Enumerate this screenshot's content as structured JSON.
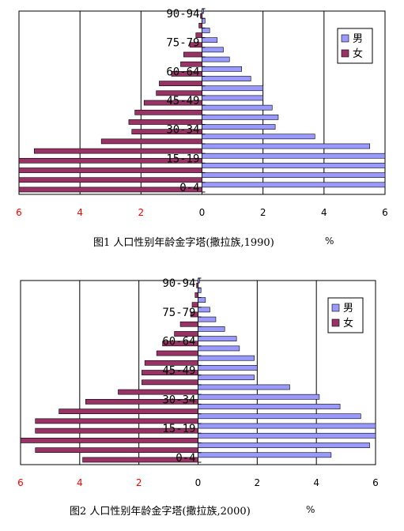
{
  "colors": {
    "male": "#9999ff",
    "female": "#993366",
    "bar_edge": "#000000",
    "frame": "#000000",
    "gridline": "#000000",
    "negative_tick": "#ff0000",
    "positive_tick": "#000000"
  },
  "chart_data": [
    {
      "type": "bar",
      "orientation": "horizontal-pyramid",
      "caption": "图1 人口性别年龄金字塔(撒拉族,1990)",
      "unit": "%",
      "xlim": [
        -6,
        6
      ],
      "x_ticks": [
        "6",
        "4",
        "2",
        "0",
        "2",
        "4",
        "6"
      ],
      "grid": true,
      "legend_position": "top-right",
      "age_labels_shown": [
        "90-94",
        "75-79",
        "60-64",
        "45-49",
        "30-34",
        "15-19",
        "0-4"
      ],
      "categories": [
        "0-4",
        "5-9",
        "10-14",
        "15-19",
        "20-24",
        "25-29",
        "30-34",
        "35-39",
        "40-44",
        "45-49",
        "50-54",
        "55-59",
        "60-64",
        "65-69",
        "70-74",
        "75-79",
        "80-84",
        "85-89",
        "90-94"
      ],
      "series": [
        {
          "name": "男",
          "values": [
            6.0,
            6.0,
            6.0,
            6.0,
            5.5,
            3.7,
            2.4,
            2.5,
            2.3,
            2.0,
            2.0,
            1.6,
            1.3,
            0.9,
            0.7,
            0.5,
            0.25,
            0.1,
            0.05
          ]
        },
        {
          "name": "女",
          "values": [
            6.0,
            6.0,
            6.0,
            6.0,
            5.5,
            3.3,
            2.3,
            2.4,
            2.2,
            1.9,
            1.5,
            1.4,
            1.0,
            0.7,
            0.6,
            0.4,
            0.2,
            0.1,
            0.05
          ]
        }
      ]
    },
    {
      "type": "bar",
      "orientation": "horizontal-pyramid",
      "caption": "图2  人口性别年龄金字塔(撒拉族,2000)",
      "unit": "%",
      "xlim": [
        -6,
        6
      ],
      "x_ticks": [
        "6",
        "4",
        "2",
        "0",
        "2",
        "4",
        "6"
      ],
      "grid": true,
      "legend_position": "top-right",
      "age_labels_shown": [
        "90-94",
        "75-79",
        "60-64",
        "45-49",
        "30-34",
        "15-19",
        "0-4"
      ],
      "categories": [
        "0-4",
        "5-9",
        "10-14",
        "15-19",
        "20-24",
        "25-29",
        "30-34",
        "35-39",
        "40-44",
        "45-49",
        "50-54",
        "55-59",
        "60-64",
        "65-69",
        "70-74",
        "75-79",
        "80-84",
        "85-89",
        "90-94"
      ],
      "series": [
        {
          "name": "男",
          "values": [
            4.5,
            5.8,
            6.0,
            6.0,
            5.5,
            4.8,
            4.1,
            3.1,
            1.9,
            2.0,
            1.9,
            1.4,
            1.3,
            0.9,
            0.6,
            0.4,
            0.25,
            0.1,
            0.05
          ]
        },
        {
          "name": "女",
          "values": [
            3.9,
            5.5,
            6.0,
            5.5,
            5.5,
            4.7,
            3.8,
            2.7,
            1.9,
            1.9,
            1.8,
            1.4,
            1.2,
            0.8,
            0.6,
            0.25,
            0.2,
            0.1,
            0.05
          ]
        }
      ]
    }
  ]
}
